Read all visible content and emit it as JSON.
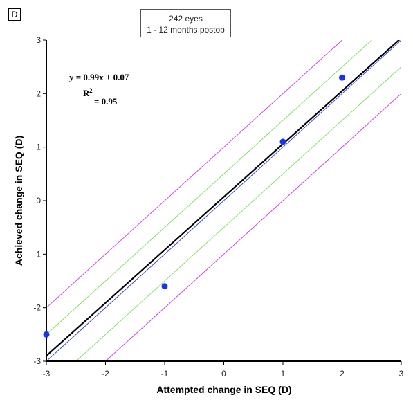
{
  "panel_label": "D",
  "info_box": {
    "line1": "242 eyes",
    "line2": "1 - 12 months postop"
  },
  "chart_data": {
    "type": "scatter",
    "xlabel": "Attempted change in SEQ (D)",
    "ylabel": "Achieved change in SEQ (D)",
    "xlim": [
      -3,
      3
    ],
    "ylim": [
      -3,
      3
    ],
    "xticks": [
      "-3",
      "-2",
      "-1",
      "0",
      "1",
      "2",
      "3"
    ],
    "yticks": [
      "3",
      "2",
      "1",
      "0",
      "-1",
      "-2",
      "-3"
    ],
    "points": [
      {
        "x": -3,
        "y": -2.5
      },
      {
        "x": -1,
        "y": -1.6
      },
      {
        "x": 1,
        "y": 1.1
      },
      {
        "x": 2,
        "y": 2.3
      }
    ],
    "regression": {
      "slope": 0.99,
      "intercept": 0.07,
      "label": "y = 0.99x + 0.07",
      "r2_label_main": "R",
      "r2_label_sup": "2",
      "r2_value": "= 0.95"
    },
    "reference_offsets": [
      {
        "offset": 0,
        "color": "#3344ee"
      },
      {
        "offset": 0.5,
        "color": "#88dd66"
      },
      {
        "offset": -0.5,
        "color": "#88dd66"
      },
      {
        "offset": 1,
        "color": "#cc44ee"
      },
      {
        "offset": -1,
        "color": "#cc44ee"
      }
    ],
    "point_color": "#1a33ee",
    "fit_color": "#000000"
  }
}
